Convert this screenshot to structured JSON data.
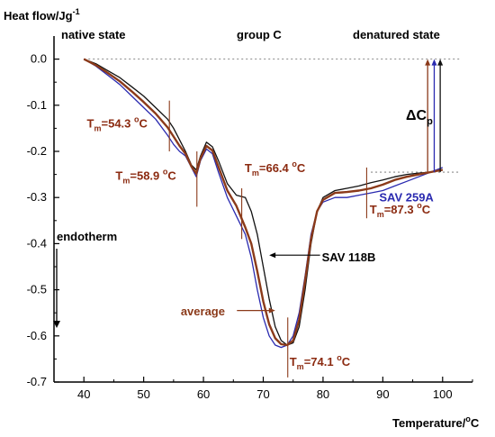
{
  "chart_data": {
    "type": "line",
    "ylabel": "Heat flow/Jg",
    "ylabel_sup": "-1",
    "xlabel": "Temperature/",
    "xlabel_unit": "C",
    "xlim": [
      35,
      105
    ],
    "ylim": [
      -0.7,
      0.05
    ],
    "x_ticks": [
      40,
      50,
      60,
      70,
      80,
      90,
      100
    ],
    "y_ticks": [
      0.0,
      -0.1,
      -0.2,
      -0.3,
      -0.4,
      -0.5,
      -0.6,
      -0.7
    ],
    "y_tick_labels": [
      "0.0",
      "-0.1",
      "-0.2",
      "-0.3",
      "-0.4",
      "-0.5",
      "-0.6",
      "-0.7"
    ],
    "baseline_y": 0.0,
    "end_baseline_y": -0.245,
    "region_labels": {
      "native": "native state",
      "group": "group C",
      "denatured": "denatured state"
    },
    "endotherm_label": "endotherm",
    "delta_cp_label": "ΔC",
    "delta_cp_sub": "p",
    "series": [
      {
        "name": "SAV 118B",
        "color": "#111111",
        "x": [
          40,
          42,
          44,
          46,
          48,
          50,
          52,
          54,
          55,
          56,
          57,
          58,
          58.8,
          59.5,
          60.5,
          61.5,
          62.5,
          64,
          65.5,
          67,
          68,
          69,
          70,
          71,
          72,
          73,
          74,
          75,
          76,
          77,
          78,
          79,
          80,
          82,
          84,
          86,
          88,
          90,
          92,
          94,
          96,
          98,
          100
        ],
        "y": [
          0.0,
          -0.01,
          -0.025,
          -0.04,
          -0.06,
          -0.08,
          -0.105,
          -0.13,
          -0.15,
          -0.175,
          -0.2,
          -0.23,
          -0.24,
          -0.21,
          -0.18,
          -0.19,
          -0.22,
          -0.27,
          -0.295,
          -0.3,
          -0.33,
          -0.38,
          -0.45,
          -0.52,
          -0.58,
          -0.61,
          -0.62,
          -0.615,
          -0.58,
          -0.5,
          -0.4,
          -0.33,
          -0.3,
          -0.285,
          -0.28,
          -0.275,
          -0.268,
          -0.262,
          -0.255,
          -0.25,
          -0.247,
          -0.245,
          -0.24
        ]
      },
      {
        "name": "SAV 259A",
        "color": "#2a2ab0",
        "x": [
          40,
          42,
          44,
          46,
          48,
          50,
          52,
          54,
          55,
          56,
          57,
          58,
          58.8,
          59.5,
          60.5,
          61.5,
          62.5,
          64,
          65.5,
          67,
          68,
          69,
          70,
          71,
          72,
          73,
          74,
          75,
          76,
          77,
          78,
          79,
          80,
          82,
          84,
          86,
          88,
          90,
          92,
          94,
          96,
          98,
          100
        ],
        "y": [
          0.0,
          -0.015,
          -0.035,
          -0.055,
          -0.08,
          -0.105,
          -0.13,
          -0.165,
          -0.185,
          -0.2,
          -0.21,
          -0.235,
          -0.255,
          -0.22,
          -0.195,
          -0.205,
          -0.245,
          -0.3,
          -0.34,
          -0.38,
          -0.43,
          -0.5,
          -0.56,
          -0.6,
          -0.62,
          -0.625,
          -0.62,
          -0.6,
          -0.55,
          -0.47,
          -0.38,
          -0.33,
          -0.31,
          -0.3,
          -0.3,
          -0.295,
          -0.29,
          -0.285,
          -0.275,
          -0.265,
          -0.255,
          -0.245,
          -0.235
        ]
      },
      {
        "name": "average",
        "color": "#8b3a1a",
        "x": [
          40,
          42,
          44,
          46,
          48,
          50,
          52,
          54,
          55,
          56,
          57,
          58,
          58.8,
          59.5,
          60.5,
          61.5,
          62.5,
          64,
          65.5,
          67,
          68,
          69,
          70,
          71,
          72,
          73,
          74,
          75,
          76,
          77,
          78,
          79,
          80,
          82,
          84,
          86,
          88,
          90,
          92,
          94,
          96,
          98,
          100
        ],
        "y": [
          0.0,
          -0.013,
          -0.03,
          -0.048,
          -0.07,
          -0.093,
          -0.118,
          -0.148,
          -0.168,
          -0.188,
          -0.205,
          -0.233,
          -0.248,
          -0.215,
          -0.188,
          -0.198,
          -0.233,
          -0.285,
          -0.318,
          -0.365,
          -0.4,
          -0.46,
          -0.525,
          -0.575,
          -0.605,
          -0.618,
          -0.62,
          -0.61,
          -0.565,
          -0.48,
          -0.39,
          -0.33,
          -0.305,
          -0.29,
          -0.288,
          -0.285,
          -0.28,
          -0.272,
          -0.262,
          -0.255,
          -0.25,
          -0.245,
          -0.24
        ]
      }
    ],
    "annotations": [
      {
        "tm": "54.3",
        "unit": "C",
        "line_x": 54.3,
        "line_y1": -0.09,
        "line_y2": -0.2
      },
      {
        "tm": "58.9",
        "unit": "C",
        "line_x": 58.9,
        "line_y1": -0.2,
        "line_y2": -0.32
      },
      {
        "tm": "66.4",
        "unit": "C",
        "line_x": 66.4,
        "line_y1": -0.28,
        "line_y2": -0.39
      },
      {
        "tm": "87.3",
        "unit": "C",
        "line_x": 87.3,
        "line_y1": -0.235,
        "line_y2": -0.345
      },
      {
        "tm": "74.1",
        "unit": "C",
        "line_x": 74.1,
        "line_y1": -0.56,
        "line_y2": -0.69
      }
    ]
  }
}
